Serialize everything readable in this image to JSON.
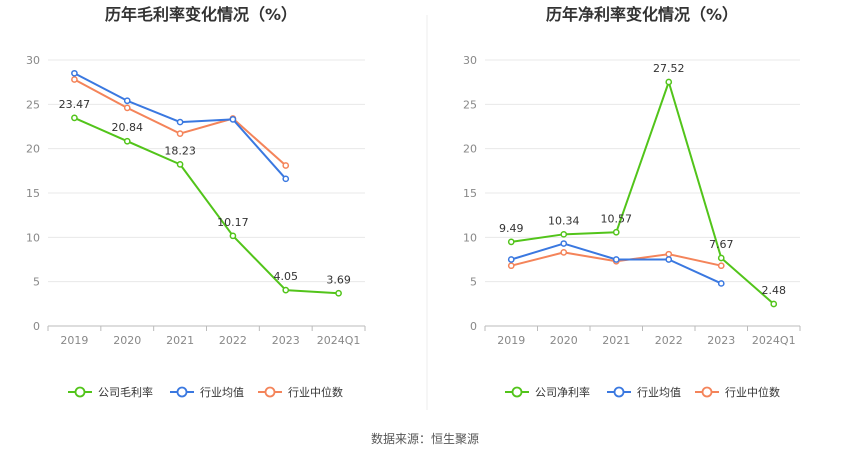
{
  "source_text": "数据来源：恒生聚源",
  "chart_data": [
    {
      "type": "line",
      "title": "历年毛利率变化情况（%）",
      "categories": [
        "2019",
        "2020",
        "2021",
        "2022",
        "2023",
        "2024Q1"
      ],
      "ylim": [
        0,
        30
      ],
      "yticks": [
        0,
        5,
        10,
        15,
        20,
        25,
        30
      ],
      "grid": true,
      "legend_position": "bottom",
      "series": [
        {
          "name": "公司毛利率",
          "color": "#52c41a",
          "values": [
            23.47,
            20.84,
            18.23,
            10.17,
            4.05,
            3.69
          ],
          "labels": [
            "23.47",
            "20.84",
            "18.23",
            "10.17",
            "4.05",
            "3.69"
          ]
        },
        {
          "name": "行业均值",
          "color": "#3a78e0",
          "values": [
            28.5,
            25.4,
            23.0,
            23.3,
            16.6,
            null
          ]
        },
        {
          "name": "行业中位数",
          "color": "#f4845a",
          "values": [
            27.8,
            24.6,
            21.7,
            23.4,
            18.1,
            null
          ]
        }
      ]
    },
    {
      "type": "line",
      "title": "历年净利率变化情况（%）",
      "categories": [
        "2019",
        "2020",
        "2021",
        "2022",
        "2023",
        "2024Q1"
      ],
      "ylim": [
        0,
        30
      ],
      "yticks": [
        0,
        5,
        10,
        15,
        20,
        25,
        30
      ],
      "grid": true,
      "legend_position": "bottom",
      "series": [
        {
          "name": "公司净利率",
          "color": "#52c41a",
          "values": [
            9.49,
            10.34,
            10.57,
            27.52,
            7.67,
            2.48
          ],
          "labels": [
            "9.49",
            "10.34",
            "10.57",
            "27.52",
            "7.67",
            "2.48"
          ]
        },
        {
          "name": "行业均值",
          "color": "#3a78e0",
          "values": [
            7.5,
            9.3,
            7.5,
            7.5,
            4.8,
            null
          ]
        },
        {
          "name": "行业中位数",
          "color": "#f4845a",
          "values": [
            6.8,
            8.3,
            7.3,
            8.1,
            6.8,
            null
          ]
        }
      ]
    }
  ]
}
